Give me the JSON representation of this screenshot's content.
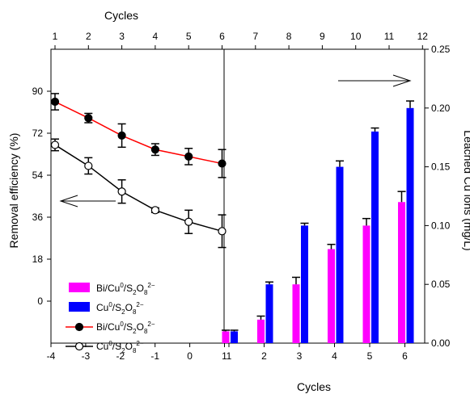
{
  "chart_data": {
    "type": "bar+line",
    "top_axis": {
      "label": "Cycles",
      "ticks": [
        "1",
        "2",
        "3",
        "4",
        "5",
        "6",
        "7",
        "8",
        "9",
        "10",
        "11",
        "12"
      ]
    },
    "bottom_axis": {
      "label": "Cycles",
      "left_ticks": [
        "-4",
        "-3",
        "-2",
        "-1",
        "0",
        "1"
      ],
      "right_ticks": [
        "1",
        "2",
        "3",
        "4",
        "5",
        "6"
      ]
    },
    "left_axis": {
      "label": "Removal efficiency (%)",
      "range": [
        -18,
        108
      ],
      "ticks": [
        "0",
        "18",
        "36",
        "54",
        "72",
        "90"
      ]
    },
    "right_axis": {
      "label": "Leached Cu ions (mg/L)",
      "range": [
        0,
        0.25
      ],
      "ticks": [
        "0.00",
        "0.05",
        "0.10",
        "0.15",
        "0.20",
        "0.25"
      ]
    },
    "bar_categories": [
      "1",
      "2",
      "3",
      "4",
      "5",
      "6"
    ],
    "bar_series": [
      {
        "name": "Bi/Cu⁰/S₂O₈²⁻",
        "color": "#ff00ff",
        "values": [
          0.01,
          0.02,
          0.05,
          0.08,
          0.1,
          0.12
        ],
        "errors": [
          0.001,
          0.003,
          0.006,
          0.004,
          0.006,
          0.009
        ]
      },
      {
        "name": "Cu⁰/S₂O₈²⁻",
        "color": "#0000ff",
        "values": [
          0.01,
          0.05,
          0.1,
          0.15,
          0.18,
          0.2
        ],
        "errors": [
          0.001,
          0.002,
          0.002,
          0.005,
          0.003,
          0.006
        ]
      }
    ],
    "line_series": [
      {
        "name": "Bi/Cu⁰/S₂O₈²⁻",
        "line_color": "#ff0000",
        "marker": "filled-circle",
        "x": [
          1,
          2,
          3,
          4,
          5,
          6
        ],
        "y": [
          85.5,
          78.5,
          71,
          65,
          62,
          59
        ],
        "errors": [
          3.5,
          2,
          5,
          2.5,
          3.5,
          6
        ]
      },
      {
        "name": "Cu⁰/S₂O₈²⁻",
        "line_color": "#000000",
        "marker": "open-circle",
        "x": [
          1,
          2,
          3,
          4,
          5,
          6
        ],
        "y": [
          67,
          58,
          47,
          39,
          34,
          30
        ],
        "errors": [
          2.5,
          3.5,
          5,
          1,
          5,
          7
        ]
      }
    ],
    "legend": {
      "placement": "lower-left",
      "entries": [
        {
          "base": "Bi/Cu",
          "sup1": "0",
          "mid": "/S",
          "sub": "2",
          "mid2": "O",
          "sub2": "8",
          "sup2": "2−",
          "kind": "bar",
          "color": "#ff00ff"
        },
        {
          "base": "Cu",
          "sup1": "0",
          "mid": "/S",
          "sub": "2",
          "mid2": "O",
          "sub2": "8",
          "sup2": "2−",
          "kind": "bar",
          "color": "#0000ff"
        },
        {
          "base": "Bi/Cu",
          "sup1": "0",
          "mid": "/S",
          "sub": "2",
          "mid2": "O",
          "sub2": "8",
          "sup2": "2−",
          "kind": "line-filled",
          "color": "#ff0000"
        },
        {
          "base": "Cu",
          "sup1": "0",
          "mid": "/S",
          "sub": "2",
          "mid2": "O",
          "sub2": "8",
          "sup2": "2−",
          "kind": "line-open",
          "color": "#000000"
        }
      ]
    },
    "annotations": [
      {
        "type": "arrow",
        "direction": "left",
        "meaning": "lines use left axis"
      },
      {
        "type": "arrow",
        "direction": "right",
        "meaning": "bars use right axis"
      }
    ],
    "grid": false
  }
}
